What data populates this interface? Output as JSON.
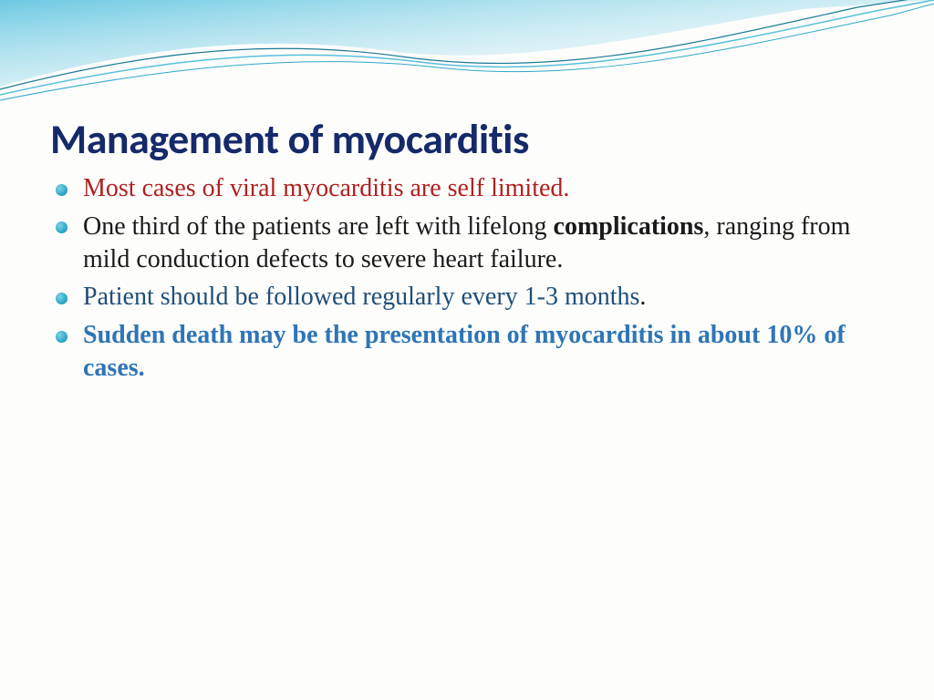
{
  "slide": {
    "title": "Management of myocarditis",
    "title_color": "#152a6a",
    "title_fontsize": 46,
    "body_fontsize": 28,
    "body_lineheight": 1.28,
    "bullet_color": "#2fa8c9",
    "background_color": "#fdfdfb",
    "wave": {
      "fill_gradient_from": "#6cc9e2",
      "fill_gradient_to": "#ffffff",
      "line_colors": [
        "#1a7a96",
        "#58c0da",
        "#2fa8c9"
      ]
    },
    "bullets": [
      {
        "runs": [
          {
            "text": "Most cases of viral myocarditis are self limited.",
            "color": "#b02020",
            "bold": false
          }
        ]
      },
      {
        "runs": [
          {
            "text": "One third of the patients are left with lifelong ",
            "color": "#1a1a1a",
            "bold": false
          },
          {
            "text": "complications",
            "color": "#1a1a1a",
            "bold": true
          },
          {
            "text": ", ranging from mild conduction defects to severe heart failure.",
            "color": "#1a1a1a",
            "bold": false
          }
        ]
      },
      {
        "runs": [
          {
            "text": "Patient should be followed regularly every 1-3 months",
            "color": "#1f4e79",
            "bold": false
          },
          {
            "text": ".",
            "color": "#1a1a1a",
            "bold": false
          }
        ]
      },
      {
        "runs": [
          {
            "text": "Sudden death may be the presentation of myocarditis in about 10% of cases.",
            "color": "#2e75b6",
            "bold": true
          }
        ]
      }
    ]
  }
}
